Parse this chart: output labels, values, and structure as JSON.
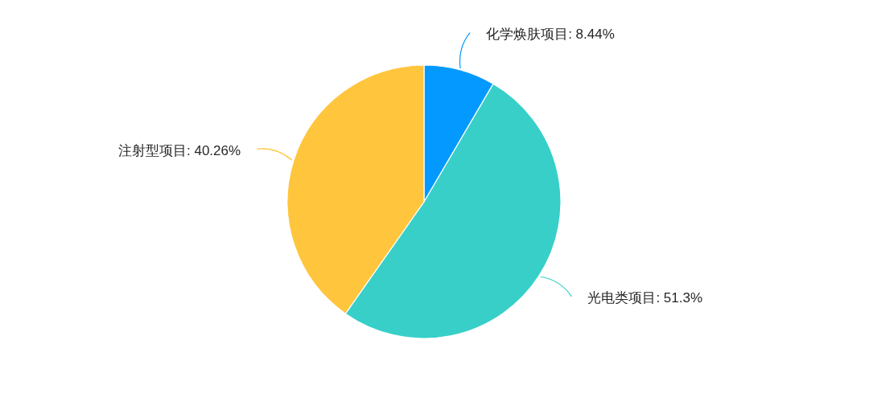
{
  "chart_data": {
    "type": "pie",
    "categories": [
      "化学焕肤项目",
      "光电类项目",
      "注射型项目"
    ],
    "values": [
      8.44,
      51.3,
      40.26
    ],
    "colors": [
      "#0399fe",
      "#38cfc9",
      "#ffc53d"
    ],
    "value_labels": [
      "8.44%",
      "51.3%",
      "40.26%"
    ]
  }
}
